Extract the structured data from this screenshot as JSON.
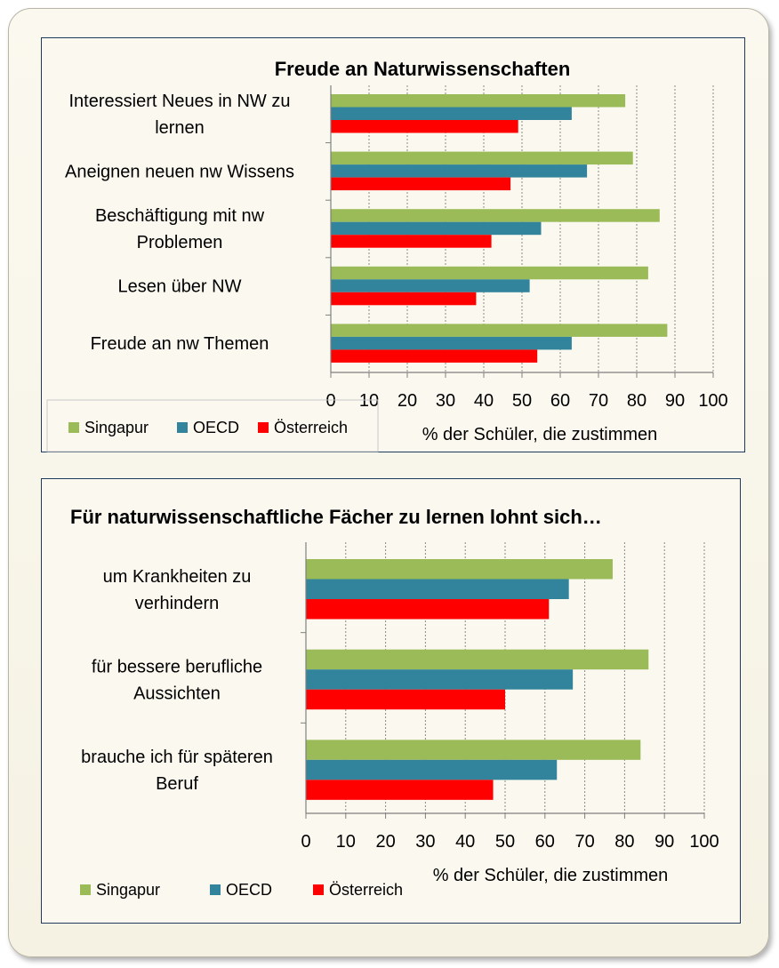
{
  "chart_data": [
    {
      "type": "bar",
      "orientation": "horizontal",
      "title": "Freude an Naturwissenschaften",
      "xlabel": "% der Schüler, die zustimmen",
      "xlim": [
        0,
        100
      ],
      "xticks": [
        0,
        10,
        20,
        30,
        40,
        50,
        60,
        70,
        80,
        90,
        100
      ],
      "grid": "vertical",
      "legend_position": "bottom-left",
      "categories": [
        [
          "Interessiert Neues in NW zu",
          "lernen"
        ],
        [
          "Aneignen neuen nw Wissens"
        ],
        [
          "Beschäftigung mit nw",
          "Problemen"
        ],
        [
          "Lesen über NW"
        ],
        [
          "Freude an nw Themen"
        ]
      ],
      "series": [
        {
          "name": "Singapur",
          "color": "#9bbb59",
          "values": [
            77,
            79,
            86,
            83,
            88
          ]
        },
        {
          "name": "OECD",
          "color": "#31849b",
          "values": [
            63,
            67,
            55,
            52,
            63
          ]
        },
        {
          "name": "Österreich",
          "color": "#ff0000",
          "values": [
            49,
            47,
            42,
            38,
            54
          ]
        }
      ]
    },
    {
      "type": "bar",
      "orientation": "horizontal",
      "title": "Für naturwissenschaftliche Fächer zu lernen lohnt sich…",
      "xlabel": "% der Schüler, die zustimmen",
      "xlim": [
        0,
        100
      ],
      "xticks": [
        0,
        10,
        20,
        30,
        40,
        50,
        60,
        70,
        80,
        90,
        100
      ],
      "grid": "vertical",
      "legend_position": "bottom-left",
      "categories": [
        [
          "um Krankheiten zu",
          "verhindern"
        ],
        [
          "für bessere berufliche",
          "Aussichten"
        ],
        [
          "brauche ich für späteren",
          "Beruf"
        ]
      ],
      "series": [
        {
          "name": "Singapur",
          "color": "#9bbb59",
          "values": [
            77,
            86,
            84
          ]
        },
        {
          "name": "OECD",
          "color": "#31849b",
          "values": [
            66,
            67,
            63
          ]
        },
        {
          "name": "Österreich",
          "color": "#ff0000",
          "values": [
            61,
            50,
            47
          ]
        }
      ]
    }
  ]
}
